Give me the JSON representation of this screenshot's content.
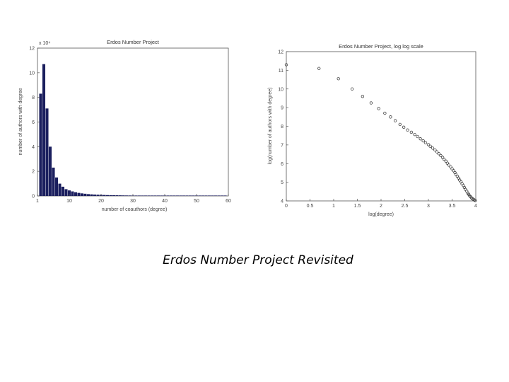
{
  "caption": "Erdos Number Project Revisited",
  "colors": {
    "bar": "#1b1f5e",
    "marker": "#2b2b2b",
    "axis": "#555555"
  },
  "chart_data": [
    {
      "type": "bar",
      "title": "Erdos Number Project",
      "xlabel": "number of coauthors (degree)",
      "ylabel": "number of authors with degree",
      "y_multiplier_label": "x 10⁴",
      "xlim": [
        0,
        60
      ],
      "ylim": [
        0,
        12
      ],
      "xticks": [
        0,
        10,
        20,
        30,
        40,
        50,
        60
      ],
      "xtick_labels": [
        "1",
        "10",
        "20",
        "30",
        "40",
        "50",
        "60"
      ],
      "yticks": [
        0,
        2,
        4,
        6,
        8,
        10,
        12
      ],
      "ytick_labels": [
        "0",
        "2",
        "4",
        "6",
        "8",
        "10",
        "12"
      ],
      "bar_width": 0.9,
      "x": [
        1,
        2,
        3,
        4,
        5,
        6,
        7,
        8,
        9,
        10,
        11,
        12,
        13,
        14,
        15,
        16,
        17,
        18,
        19,
        20,
        21,
        22,
        23,
        24,
        25,
        26,
        27,
        28,
        29,
        30,
        31,
        32,
        33,
        34,
        35,
        36,
        37,
        38,
        39,
        40,
        41,
        42,
        43,
        44,
        45,
        46,
        47,
        48,
        49,
        50,
        51,
        52,
        53,
        54,
        55,
        56,
        57,
        58,
        59
      ],
      "values": [
        8.3,
        10.7,
        7.1,
        4.0,
        2.3,
        1.5,
        1.0,
        0.75,
        0.55,
        0.45,
        0.37,
        0.3,
        0.25,
        0.21,
        0.18,
        0.15,
        0.13,
        0.11,
        0.1,
        0.09,
        0.08,
        0.07,
        0.065,
        0.06,
        0.055,
        0.05,
        0.045,
        0.04,
        0.038,
        0.035,
        0.032,
        0.03,
        0.028,
        0.026,
        0.024,
        0.022,
        0.02,
        0.019,
        0.018,
        0.017,
        0.016,
        0.015,
        0.014,
        0.013,
        0.012,
        0.011,
        0.01,
        0.01,
        0.009,
        0.009,
        0.008,
        0.008,
        0.007,
        0.007,
        0.006,
        0.006,
        0.005,
        0.005,
        0.005
      ]
    },
    {
      "type": "scatter",
      "title": "Erdos Number Project, log log scale",
      "xlabel": "log(degree)",
      "ylabel": "log(number of authors with degree)",
      "xlim": [
        0,
        4
      ],
      "ylim": [
        4,
        12
      ],
      "xticks": [
        0,
        0.5,
        1,
        1.5,
        2,
        2.5,
        3,
        3.5,
        4
      ],
      "xtick_labels": [
        "0",
        "0.5",
        "1",
        "1.5",
        "2",
        "2.5",
        "3",
        "3.5",
        "4"
      ],
      "yticks": [
        4,
        5,
        6,
        7,
        8,
        9,
        10,
        11,
        12
      ],
      "ytick_labels": [
        "4",
        "5",
        "6",
        "7",
        "8",
        "9",
        "10",
        "11",
        "12"
      ],
      "x": [
        0.0,
        0.69,
        1.1,
        1.39,
        1.61,
        1.79,
        1.95,
        2.08,
        2.2,
        2.3,
        2.4,
        2.48,
        2.56,
        2.64,
        2.71,
        2.77,
        2.83,
        2.89,
        2.94,
        3.0,
        3.04,
        3.09,
        3.14,
        3.18,
        3.22,
        3.26,
        3.3,
        3.33,
        3.37,
        3.4,
        3.43,
        3.47,
        3.5,
        3.53,
        3.56,
        3.58,
        3.61,
        3.64,
        3.66,
        3.69,
        3.71,
        3.74,
        3.76,
        3.78,
        3.81,
        3.83,
        3.85,
        3.87,
        3.89,
        3.91,
        3.93,
        3.95,
        3.97,
        3.99
      ],
      "y": [
        11.3,
        11.1,
        10.55,
        10.0,
        9.6,
        9.25,
        8.95,
        8.7,
        8.5,
        8.3,
        8.1,
        7.95,
        7.8,
        7.68,
        7.56,
        7.45,
        7.33,
        7.22,
        7.12,
        7.02,
        6.93,
        6.83,
        6.73,
        6.63,
        6.53,
        6.43,
        6.33,
        6.23,
        6.13,
        6.02,
        5.92,
        5.82,
        5.72,
        5.62,
        5.52,
        5.42,
        5.32,
        5.22,
        5.12,
        5.02,
        4.92,
        4.82,
        4.72,
        4.62,
        4.52,
        4.42,
        4.35,
        4.28,
        4.22,
        4.16,
        4.12,
        4.08,
        4.05,
        4.02
      ]
    }
  ]
}
